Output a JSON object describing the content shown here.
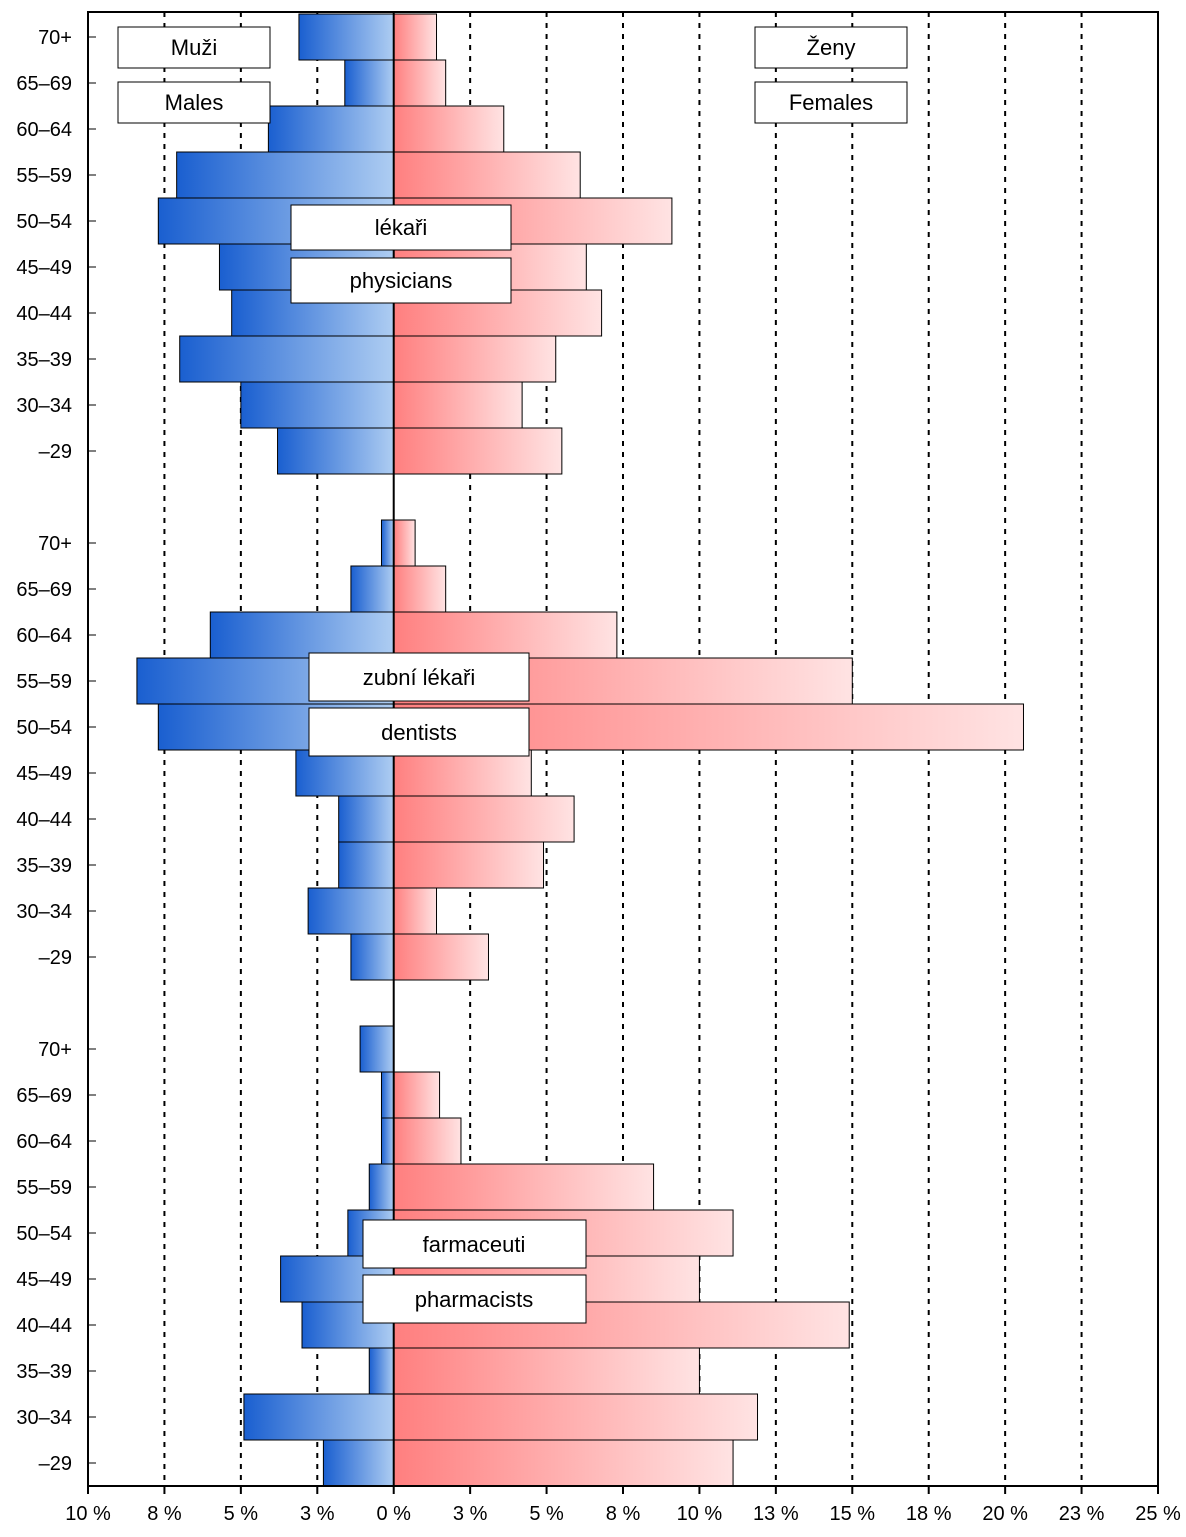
{
  "chart_data": {
    "type": "bar",
    "orientation": "horizontal",
    "layout": "population-pyramid",
    "xlim": [
      -10,
      25
    ],
    "x_tick_labels": [
      "10 %",
      "8 %",
      "5 %",
      "3 %",
      "0 %",
      "3 %",
      "5 %",
      "8 %",
      "10 %",
      "13 %",
      "15 %",
      "18 %",
      "20 %",
      "23 %",
      "25 %"
    ],
    "grid": "vertical dotted",
    "legend": {
      "males_cz": "Muži",
      "males_en": "Males",
      "females_cz": "Ženy",
      "females_en": "Females"
    },
    "colors": {
      "males_dark": "#1a5fd0",
      "males_light": "#aecdf2",
      "females_dark": "#ff7f7f",
      "females_light": "#ffe3e3"
    },
    "panels": [
      {
        "label_cz": "lékaři",
        "label_en": "physicians",
        "categories": [
          "70+",
          "65–69",
          "60–64",
          "55–59",
          "50–54",
          "45–49",
          "40–44",
          "35–39",
          "30–34",
          "–29"
        ],
        "males": [
          3.1,
          1.6,
          4.1,
          7.1,
          7.7,
          5.7,
          5.3,
          7.0,
          5.0,
          3.8
        ],
        "females": [
          1.4,
          1.7,
          3.6,
          6.1,
          9.1,
          6.3,
          6.8,
          5.3,
          4.2,
          5.5
        ]
      },
      {
        "label_cz": "zubní lékaři",
        "label_en": "dentists",
        "categories": [
          "70+",
          "65–69",
          "60–64",
          "55–59",
          "50–54",
          "45–49",
          "40–44",
          "35–39",
          "30–34",
          "–29"
        ],
        "males": [
          0.4,
          1.4,
          6.0,
          8.4,
          7.7,
          3.2,
          1.8,
          1.8,
          2.8,
          1.4
        ],
        "females": [
          0.7,
          1.7,
          7.3,
          15.0,
          20.6,
          4.5,
          5.9,
          4.9,
          1.4,
          3.1
        ]
      },
      {
        "label_cz": "farmaceuti",
        "label_en": "pharmacists",
        "categories": [
          "70+",
          "65–69",
          "60–64",
          "55–59",
          "50–54",
          "45–49",
          "40–44",
          "35–39",
          "30–34",
          "–29"
        ],
        "males": [
          1.1,
          0.4,
          0.4,
          0.8,
          1.5,
          3.7,
          3.0,
          0.8,
          4.9,
          2.3
        ],
        "females": [
          0.0,
          1.5,
          2.2,
          8.5,
          11.1,
          10.0,
          14.9,
          10.0,
          11.9,
          11.1
        ]
      }
    ]
  }
}
